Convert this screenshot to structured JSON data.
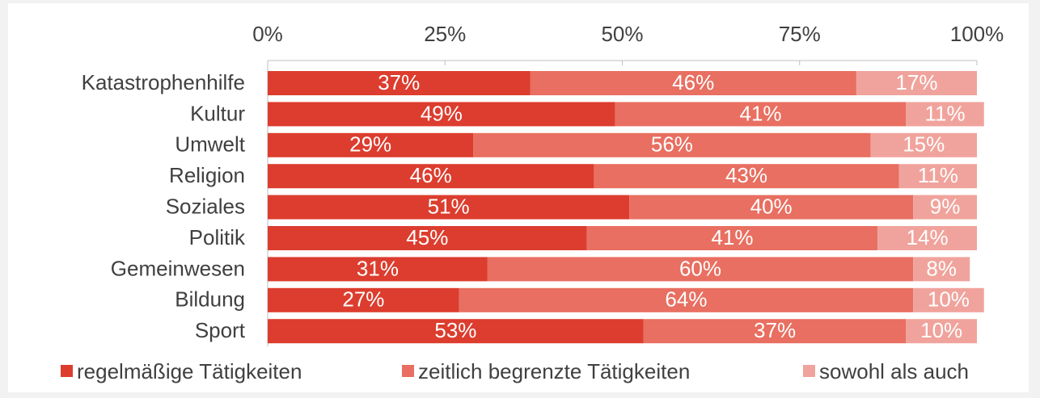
{
  "chart_data": {
    "type": "stacked-bar-horizontal",
    "categories": [
      "Katastrophenhilfe",
      "Kultur",
      "Umwelt",
      "Religion",
      "Soziales",
      "Politik",
      "Gemeinwesen",
      "Bildung",
      "Sport"
    ],
    "series": [
      {
        "name": "regelmäßige Tätigkeiten",
        "color": "#dc3d2e",
        "values": [
          37,
          49,
          29,
          46,
          51,
          45,
          31,
          27,
          53
        ],
        "value_labels": [
          "37%",
          "49%",
          "29%",
          "46%",
          "51%",
          "45%",
          "31%",
          "27%",
          "53%"
        ]
      },
      {
        "name": "zeitlich begrenzte Tätigkeiten",
        "color": "#e86f61",
        "values": [
          46,
          41,
          56,
          43,
          40,
          41,
          60,
          64,
          37
        ],
        "value_labels": [
          "46%",
          "41%",
          "56%",
          "43%",
          "40%",
          "41%",
          "60%",
          "64%",
          "37%"
        ]
      },
      {
        "name": "sowohl als auch",
        "color": "#f0a39c",
        "values": [
          17,
          11,
          15,
          11,
          9,
          14,
          8,
          10,
          10
        ],
        "value_labels": [
          "17%",
          "11%",
          "15%",
          "11%",
          "9%",
          "14%",
          "8%",
          "10%",
          "10%"
        ]
      }
    ],
    "xlim": [
      0,
      100
    ],
    "xticks": [
      {
        "value": 0,
        "label": "0%"
      },
      {
        "value": 25,
        "label": "25%"
      },
      {
        "value": 50,
        "label": "50%"
      },
      {
        "value": 75,
        "label": "75%"
      },
      {
        "value": 100,
        "label": "100%"
      }
    ],
    "legend": "bottom"
  }
}
